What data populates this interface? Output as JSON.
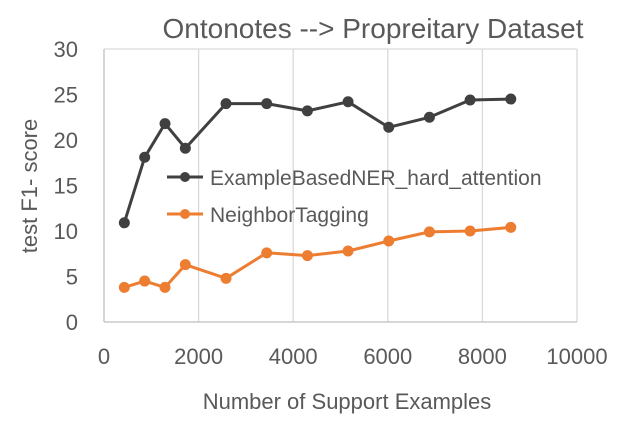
{
  "chart_data": {
    "type": "line",
    "title": "Ontonotes --> Propreitary Dataset",
    "xlabel": "Number of Support Examples",
    "ylabel": "test F1- score",
    "xlim": [
      0,
      10000
    ],
    "ylim": [
      0,
      30
    ],
    "xticks": [
      "0",
      "2000",
      "4000",
      "6000",
      "8000",
      "10000"
    ],
    "yticks": [
      "0",
      "5",
      "10",
      "15",
      "20",
      "25",
      "30"
    ],
    "grid": {
      "vertical": true,
      "horizontal": false
    },
    "legend_position": "center-right",
    "series": [
      {
        "name": "ExampleBasedNER_hard_attention",
        "color": "#404040",
        "x": [
          430,
          860,
          1290,
          1720,
          2580,
          3440,
          4300,
          5160,
          6020,
          6880,
          7740,
          8600
        ],
        "y": [
          10.9,
          18.1,
          21.8,
          19.1,
          24.0,
          24.0,
          23.2,
          24.2,
          21.4,
          22.5,
          24.4,
          24.5
        ]
      },
      {
        "name": "NeighborTagging",
        "color": "#ED7D31",
        "x": [
          430,
          860,
          1290,
          1720,
          2580,
          3440,
          4300,
          5160,
          6020,
          6880,
          7740,
          8600
        ],
        "y": [
          3.8,
          4.5,
          3.8,
          6.3,
          4.8,
          7.6,
          7.3,
          7.8,
          8.9,
          9.9,
          10.0,
          10.4
        ]
      }
    ]
  }
}
